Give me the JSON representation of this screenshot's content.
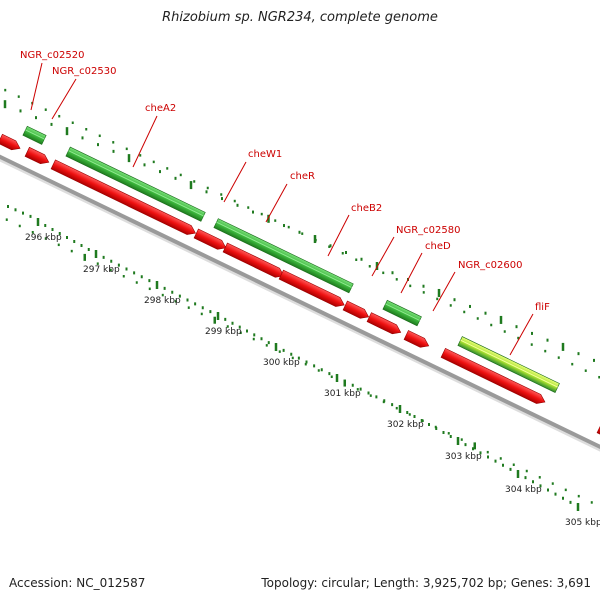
{
  "title": "Rhizobium sp. NGR234, complete genome",
  "footer": {
    "accession": "Accession: NC_012587",
    "summary": "Topology: circular; Length: 3,925,702 bp; Genes: 3,691"
  },
  "colors": {
    "forward_gene": "#3cb73c",
    "forward_gene_light": "#ccff33",
    "reverse_gene": "#ee1111",
    "backbone": "#9a9a9a",
    "ticks": "#1f7a1f",
    "label_text": "#cc0000",
    "label_line": "#cc0000"
  },
  "axis": {
    "unit": "kbp",
    "ticks": [
      {
        "label": "296 kbp",
        "value": 296
      },
      {
        "label": "297 kbp",
        "value": 297
      },
      {
        "label": "298 kbp",
        "value": 298
      },
      {
        "label": "299 kbp",
        "value": 299
      },
      {
        "label": "300 kbp",
        "value": 300
      },
      {
        "label": "301 kbp",
        "value": 301
      },
      {
        "label": "302 kbp",
        "value": 302
      },
      {
        "label": "303 kbp",
        "value": 303
      },
      {
        "label": "304 kbp",
        "value": 304
      },
      {
        "label": "305 kbp",
        "value": 305
      }
    ]
  },
  "gene_labels": [
    {
      "name": "NGR_c02520"
    },
    {
      "name": "NGR_c02530"
    },
    {
      "name": "cheA2"
    },
    {
      "name": "cheW1"
    },
    {
      "name": "cheR"
    },
    {
      "name": "cheB2"
    },
    {
      "name": "NGR_c02580"
    },
    {
      "name": "cheD"
    },
    {
      "name": "NGR_c02600"
    },
    {
      "name": "fliF"
    }
  ]
}
